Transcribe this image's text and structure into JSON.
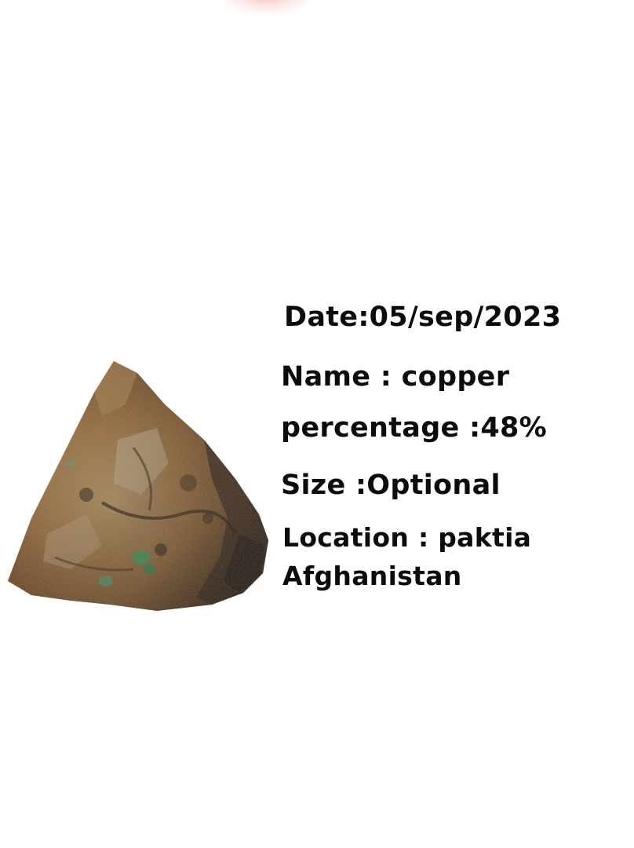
{
  "specimen": {
    "date_line": "Date:05/sep/2023",
    "name_line": "Name : copper",
    "percentage_line": "percentage :48%",
    "size_line": "Size :Optional",
    "location_line_1": "Location : paktia",
    "location_line_2": "Afghanistan"
  },
  "colors": {
    "background": "#ffffff",
    "text": "#0c0c0c",
    "rock_base": "#8a5a2b",
    "rock_highlight": "#c9a36a",
    "rock_shadow": "#2b1d12",
    "malachite": "#3bb36a"
  },
  "image": {
    "subject": "copper-ore-rock"
  }
}
